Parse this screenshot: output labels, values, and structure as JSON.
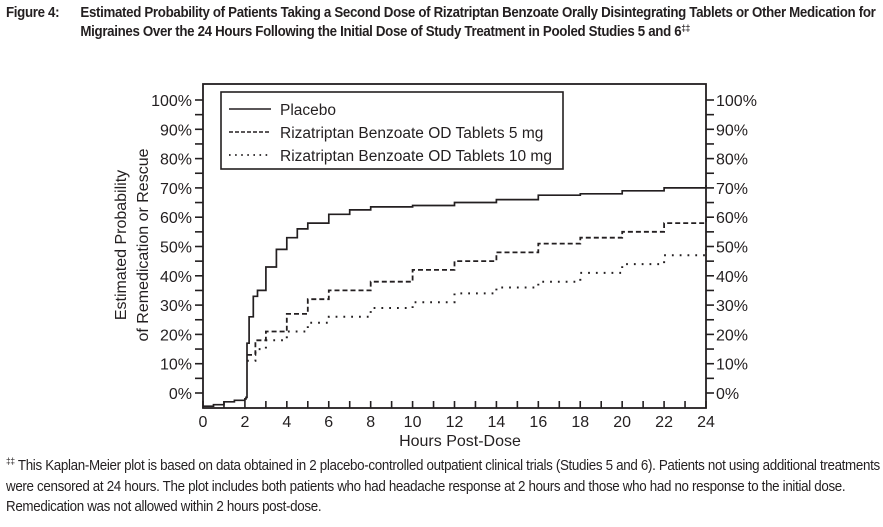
{
  "figure": {
    "label": "Figure 4:",
    "title": "Estimated Probability of Patients Taking a Second Dose of Rizatriptan Benzoate Orally Disintegrating Tablets or Other Medication for Migraines Over the 24 Hours Following the Initial Dose of Study Treatment in Pooled Studies 5 and 6",
    "title_marker": "‡‡"
  },
  "footnote": {
    "marker": "‡‡",
    "text": "This Kaplan-Meier plot is based on data obtained in 2 placebo-controlled outpatient clinical trials (Studies 5 and 6). Patients not using additional treatments were censored at 24 hours. The plot includes both patients who had headache response at 2 hours and those who had no response to the initial dose. Remedication was not allowed within 2 hours post-dose."
  },
  "chart_data": {
    "type": "line",
    "title": "Estimated Probability of Patients Taking a Second Dose of Rizatriptan Benzoate Orally Disintegrating Tablets or Other Medication for Migraines Over the 24 Hours Following the Initial Dose of Study Treatment in Pooled Studies 5 and 6",
    "xlabel": "Hours Post-Dose",
    "ylabel": "Estimated Probability of Remedication or Rescue",
    "ylabel_lines": [
      "Estimated Probability",
      "of Remedication or Rescue"
    ],
    "xlim": [
      0,
      24
    ],
    "ylim": [
      -5,
      105
    ],
    "x_ticks": [
      0,
      2,
      4,
      6,
      8,
      10,
      12,
      14,
      16,
      18,
      20,
      22,
      24
    ],
    "x_minor_ticks": [
      1,
      3,
      5,
      7,
      9,
      11,
      13,
      15,
      17,
      19,
      21,
      23
    ],
    "y_ticks": [
      0,
      10,
      20,
      30,
      40,
      50,
      60,
      70,
      80,
      90,
      100
    ],
    "y_minor_ticks": [
      5,
      15,
      25,
      35,
      45,
      55,
      65,
      75,
      85,
      95
    ],
    "y_tick_labels": [
      "0%",
      "10%",
      "20%",
      "30%",
      "40%",
      "50%",
      "60%",
      "70%",
      "80%",
      "90%",
      "100%"
    ],
    "secondary_y_axis": true,
    "grid": false,
    "legend_position": "top-left",
    "series": [
      {
        "name": "Placebo",
        "style": "solid",
        "step": true,
        "x": [
          0,
          0.5,
          1,
          1.5,
          2,
          2.05,
          2.1,
          2.2,
          2.4,
          2.6,
          3,
          3.5,
          4,
          4.5,
          5,
          6,
          7,
          8,
          10,
          12,
          14,
          16,
          18,
          20,
          22,
          24
        ],
        "y": [
          -4.5,
          -4,
          -3,
          -2.5,
          -2,
          -1.5,
          17,
          26,
          33,
          35,
          43,
          49,
          53,
          56,
          58,
          61,
          62.5,
          63.5,
          64,
          65,
          66,
          67.5,
          68,
          69,
          70,
          71
        ]
      },
      {
        "name": "Rizatriptan Benzoate OD Tablets 5 mg",
        "style": "dashed",
        "step": true,
        "x": [
          2.1,
          2.5,
          3,
          4,
          5,
          6,
          8,
          10,
          12,
          14,
          16,
          18,
          20,
          22,
          24
        ],
        "y": [
          13,
          18,
          21,
          27,
          32,
          35,
          38,
          42,
          45,
          48,
          51,
          53,
          55,
          58,
          59.5
        ]
      },
      {
        "name": "Rizatriptan Benzoate OD Tablets 10 mg",
        "style": "dotted",
        "step": true,
        "x": [
          2.1,
          2.5,
          3,
          4,
          5,
          6,
          8,
          10,
          12,
          14,
          16,
          18,
          20,
          22,
          24
        ],
        "y": [
          11,
          15,
          18,
          21,
          24,
          26,
          29,
          31,
          34,
          36,
          38,
          41,
          44,
          47,
          51
        ]
      }
    ]
  }
}
